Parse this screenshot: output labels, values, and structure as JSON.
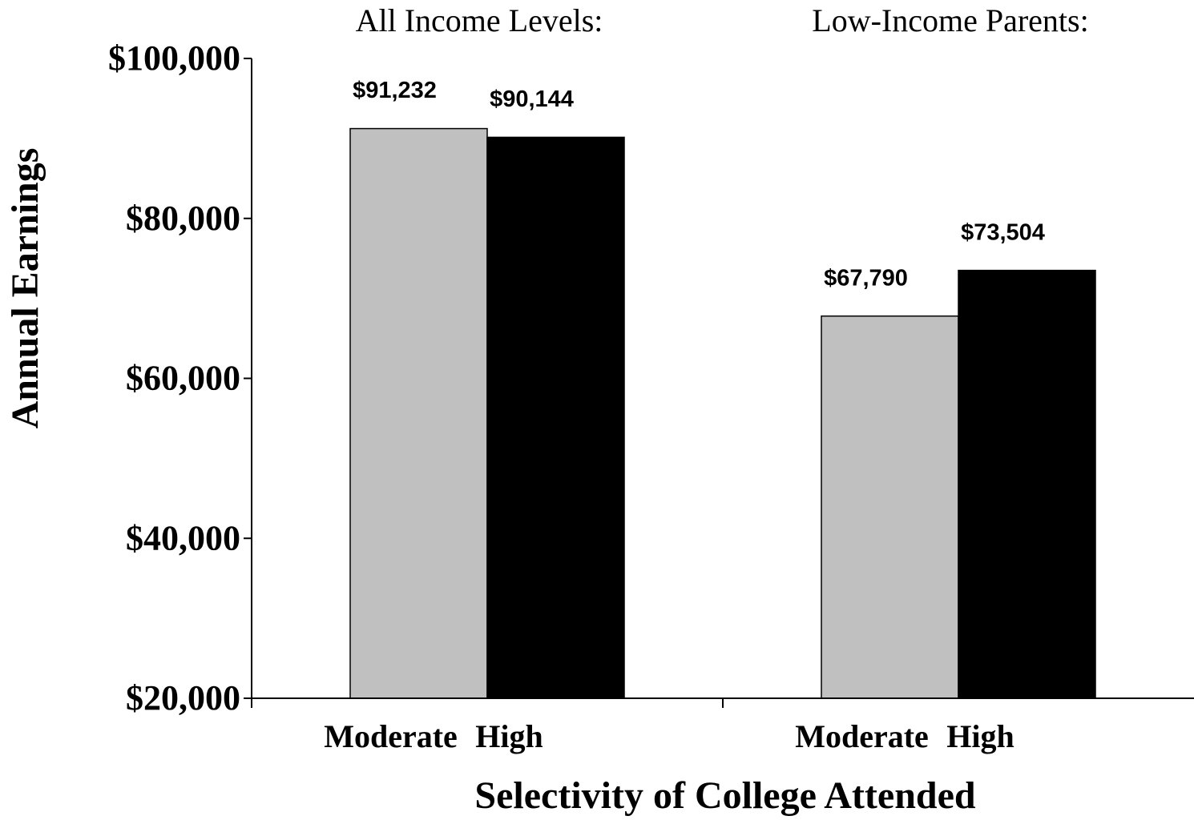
{
  "chart_data": {
    "type": "bar",
    "categories": [
      "All Income Levels:",
      "Low-Income Parents:"
    ],
    "series": [
      {
        "name": "Moderate",
        "color": "#c0c0c0",
        "values": [
          91232,
          67790
        ],
        "value_labels": [
          "$91,232",
          "$67,790"
        ]
      },
      {
        "name": "High",
        "color": "#000000",
        "values": [
          90144,
          73504
        ],
        "value_labels": [
          "$90,144",
          "$73,504"
        ]
      }
    ],
    "x_label": "Selectivity of College Attended",
    "y_label": "Annual Earnings",
    "ylim": [
      20000,
      100000
    ],
    "yticks": [
      {
        "value": 20000,
        "label": "$20,000"
      },
      {
        "value": 40000,
        "label": "$40,000"
      },
      {
        "value": 60000,
        "label": "$60,000"
      },
      {
        "value": 80000,
        "label": "$80,000"
      },
      {
        "value": 100000,
        "label": "$100,000"
      }
    ],
    "grid": false
  }
}
